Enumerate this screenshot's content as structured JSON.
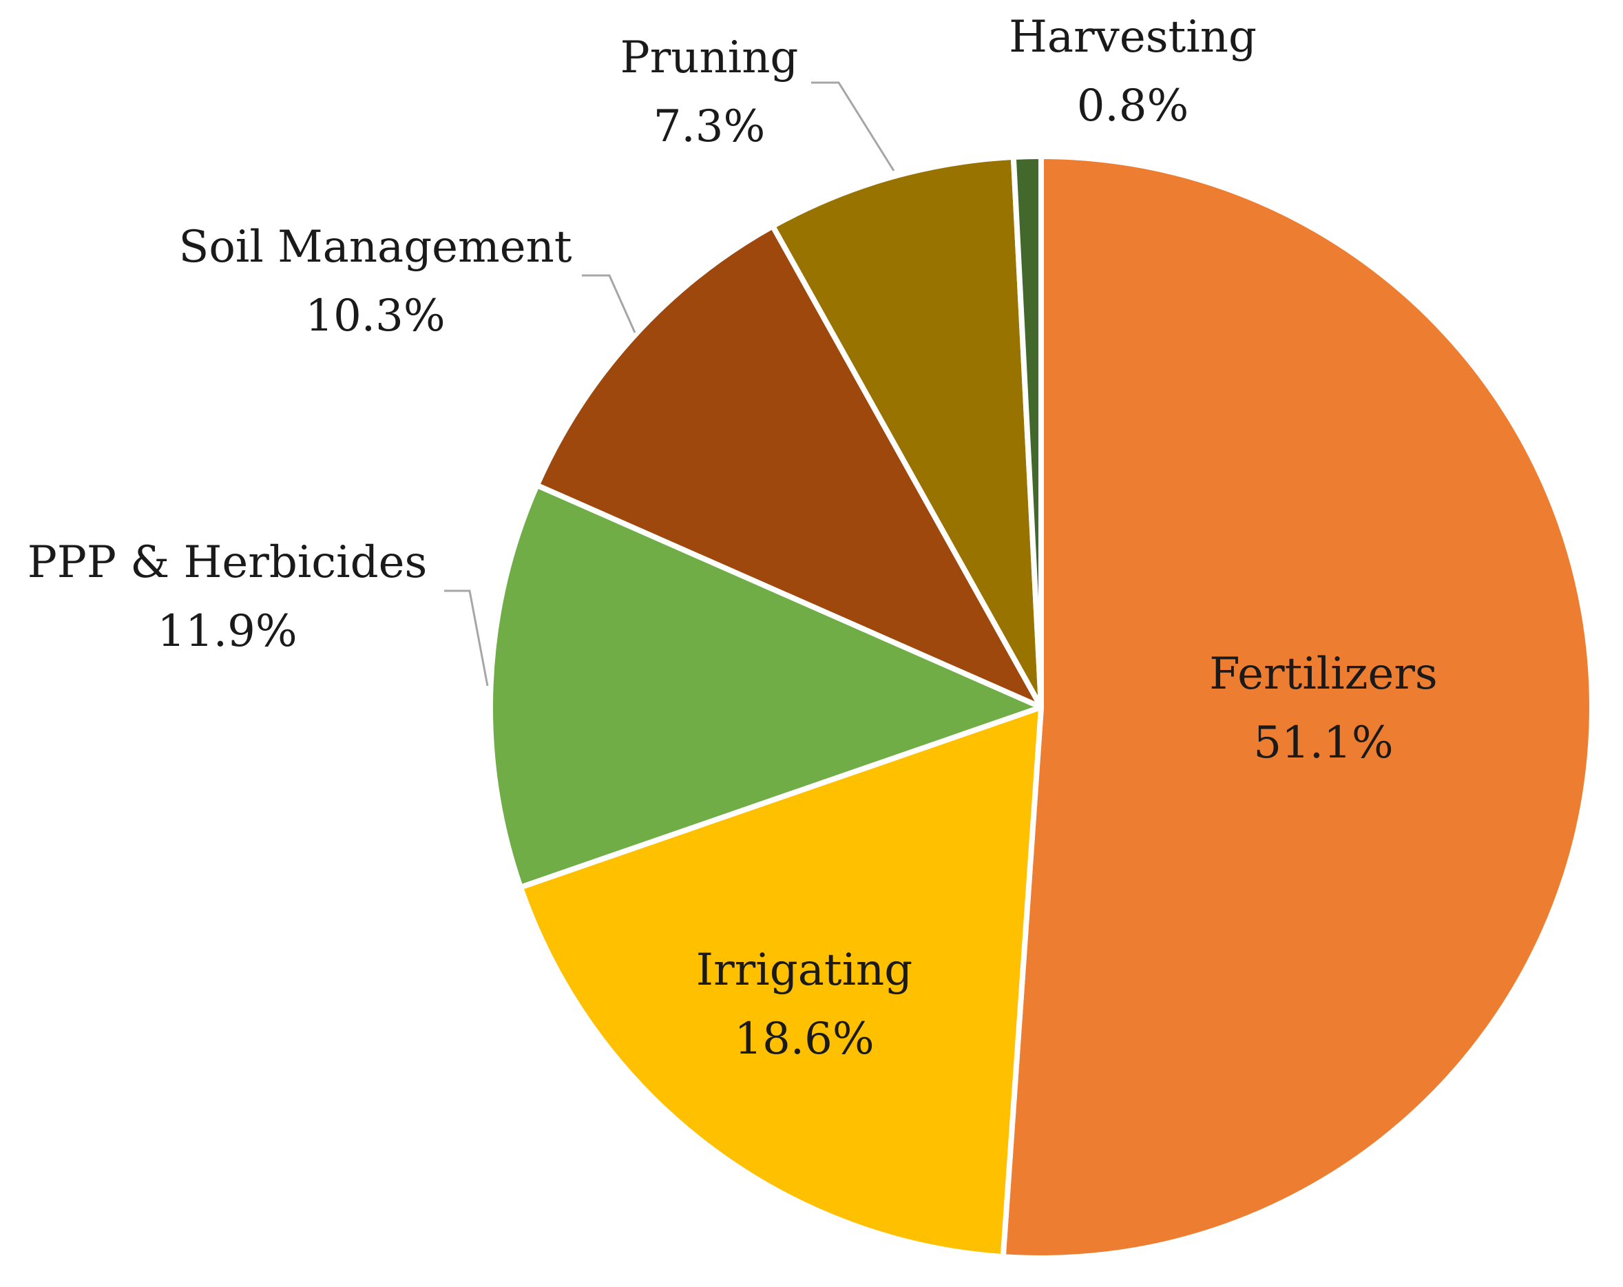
{
  "chart_data": {
    "type": "pie",
    "categories": [
      "Fertilizers",
      "Irrigating",
      "PPP & Herbicides",
      "Soil Management",
      "Pruning",
      "Harvesting"
    ],
    "values": [
      51.1,
      18.6,
      11.9,
      10.3,
      7.3,
      0.8
    ],
    "value_labels": [
      "51.1%",
      "18.6%",
      "11.9%",
      "10.3%",
      "7.3%",
      "0.8%"
    ],
    "colors": [
      "#ED7D31",
      "#FFC000",
      "#70AD47",
      "#9E480E",
      "#997300",
      "#43682B"
    ],
    "start_angle_deg": 0,
    "direction": "clockwise",
    "label_placement": [
      "inside",
      "inside",
      "outside",
      "outside",
      "outside",
      "outside"
    ]
  }
}
